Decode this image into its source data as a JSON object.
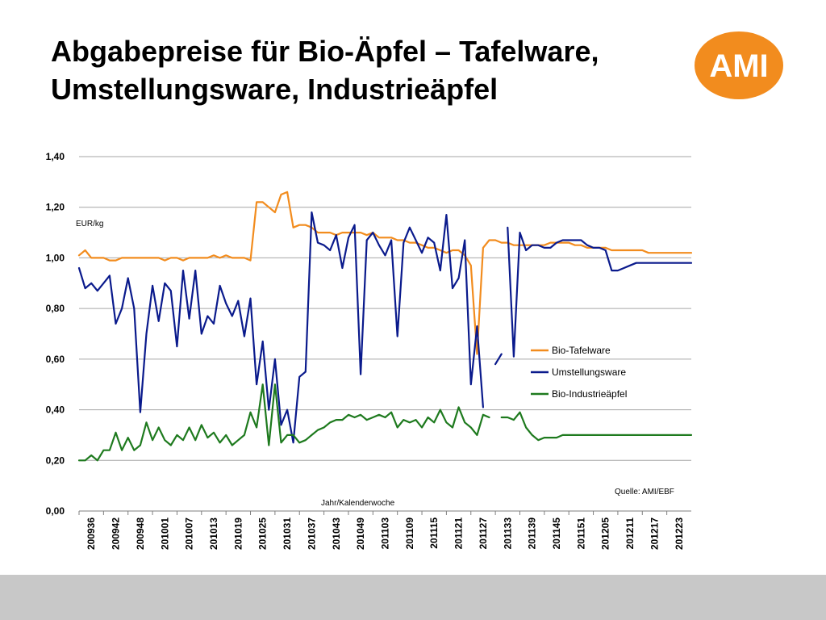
{
  "title_lines": [
    "Abgabepreise für Bio-Äpfel – Tafelware,",
    "Umstellungsware, Industrieäpfel"
  ],
  "logo_text": "AMI",
  "colors": {
    "logo": "#f28c1e",
    "bio_tafelware": "#f28c1e",
    "umstellungsware": "#0a1a8c",
    "bio_industrieaepfel": "#1e7a1e",
    "grid": "#a6a6a6",
    "footer": "#c8c8c8"
  },
  "chart_data": {
    "type": "line",
    "ylabel": "EUR/kg",
    "xlabel": "Jahr/Kalenderwoche",
    "source": "Quelle: AMI/EBF",
    "ylim": [
      0,
      1.4
    ],
    "yticks": [
      "0,00",
      "0,20",
      "0,40",
      "0,60",
      "0,80",
      "1,00",
      "1,20",
      "1,40"
    ],
    "xticks": [
      "200936",
      "200942",
      "200948",
      "201001",
      "201007",
      "201013",
      "201019",
      "201025",
      "201031",
      "201037",
      "201043",
      "201049",
      "201103",
      "201109",
      "201115",
      "201121",
      "201127",
      "201133",
      "201139",
      "201145",
      "201151",
      "201205",
      "201211",
      "201217",
      "201223"
    ],
    "grid": true,
    "legend_position": "right",
    "series": [
      {
        "name": "Bio-Tafelware",
        "color": "#f28c1e",
        "points": [
          [
            0,
            1.01
          ],
          [
            1,
            1.03
          ],
          [
            2,
            1.0
          ],
          [
            3,
            1.0
          ],
          [
            4,
            1.0
          ],
          [
            5,
            0.99
          ],
          [
            6,
            0.99
          ],
          [
            7,
            1.0
          ],
          [
            8,
            1.0
          ],
          [
            9,
            1.0
          ],
          [
            10,
            1.0
          ],
          [
            11,
            1.0
          ],
          [
            12,
            1.0
          ],
          [
            13,
            1.0
          ],
          [
            14,
            0.99
          ],
          [
            15,
            1.0
          ],
          [
            16,
            1.0
          ],
          [
            17,
            0.99
          ],
          [
            18,
            1.0
          ],
          [
            19,
            1.0
          ],
          [
            20,
            1.0
          ],
          [
            21,
            1.0
          ],
          [
            22,
            1.01
          ],
          [
            23,
            1.0
          ],
          [
            24,
            1.01
          ],
          [
            25,
            1.0
          ],
          [
            26,
            1.0
          ],
          [
            27,
            1.0
          ],
          [
            28,
            0.99
          ],
          [
            29,
            1.22
          ],
          [
            30,
            1.22
          ],
          [
            31,
            1.2
          ],
          [
            32,
            1.18
          ],
          [
            33,
            1.25
          ],
          [
            34,
            1.26
          ],
          [
            35,
            1.12
          ],
          [
            36,
            1.13
          ],
          [
            37,
            1.13
          ],
          [
            38,
            1.12
          ],
          [
            39,
            1.1
          ],
          [
            40,
            1.1
          ],
          [
            41,
            1.1
          ],
          [
            42,
            1.09
          ],
          [
            43,
            1.1
          ],
          [
            44,
            1.1
          ],
          [
            45,
            1.1
          ],
          [
            46,
            1.1
          ],
          [
            47,
            1.09
          ],
          [
            48,
            1.1
          ],
          [
            49,
            1.08
          ],
          [
            50,
            1.08
          ],
          [
            51,
            1.08
          ],
          [
            52,
            1.07
          ],
          [
            53,
            1.07
          ],
          [
            54,
            1.06
          ],
          [
            55,
            1.06
          ],
          [
            56,
            1.05
          ],
          [
            57,
            1.04
          ],
          [
            58,
            1.04
          ],
          [
            59,
            1.03
          ],
          [
            60,
            1.02
          ],
          [
            61,
            1.03
          ],
          [
            62,
            1.03
          ],
          [
            63,
            1.01
          ],
          [
            64,
            0.97
          ],
          [
            65,
            0.62
          ],
          [
            66,
            1.04
          ],
          [
            67,
            1.07
          ],
          [
            68,
            1.07
          ],
          [
            69,
            1.06
          ],
          [
            70,
            1.06
          ],
          [
            71,
            1.05
          ],
          [
            72,
            1.05
          ],
          [
            73,
            1.05
          ],
          [
            74,
            1.05
          ],
          [
            75,
            1.05
          ],
          [
            76,
            1.05
          ],
          [
            77,
            1.06
          ],
          [
            78,
            1.06
          ],
          [
            79,
            1.06
          ],
          [
            80,
            1.06
          ],
          [
            81,
            1.05
          ],
          [
            82,
            1.05
          ],
          [
            83,
            1.04
          ],
          [
            84,
            1.04
          ],
          [
            85,
            1.04
          ],
          [
            86,
            1.04
          ],
          [
            87,
            1.03
          ],
          [
            88,
            1.03
          ],
          [
            89,
            1.03
          ],
          [
            90,
            1.03
          ],
          [
            91,
            1.03
          ],
          [
            92,
            1.03
          ],
          [
            93,
            1.02
          ],
          [
            94,
            1.02
          ],
          [
            95,
            1.02
          ],
          [
            96,
            1.02
          ],
          [
            97,
            1.02
          ],
          [
            98,
            1.02
          ],
          [
            99,
            1.02
          ],
          [
            100,
            1.02
          ]
        ]
      },
      {
        "name": "Umstellungsware",
        "color": "#0a1a8c",
        "points": [
          [
            0,
            0.96
          ],
          [
            1,
            0.88
          ],
          [
            2,
            0.9
          ],
          [
            3,
            0.87
          ],
          [
            4,
            0.9
          ],
          [
            5,
            0.93
          ],
          [
            6,
            0.74
          ],
          [
            7,
            0.8
          ],
          [
            8,
            0.92
          ],
          [
            9,
            0.8
          ],
          [
            10,
            0.39
          ],
          [
            11,
            0.7
          ],
          [
            12,
            0.89
          ],
          [
            13,
            0.75
          ],
          [
            14,
            0.9
          ],
          [
            15,
            0.87
          ],
          [
            16,
            0.65
          ],
          [
            17,
            0.95
          ],
          [
            18,
            0.76
          ],
          [
            19,
            0.95
          ],
          [
            20,
            0.7
          ],
          [
            21,
            0.77
          ],
          [
            22,
            0.74
          ],
          [
            23,
            0.89
          ],
          [
            24,
            0.82
          ],
          [
            25,
            0.77
          ],
          [
            26,
            0.83
          ],
          [
            27,
            0.69
          ],
          [
            28,
            0.84
          ],
          [
            29,
            0.5
          ],
          [
            30,
            0.67
          ],
          [
            31,
            0.4
          ],
          [
            32,
            0.6
          ],
          [
            33,
            0.34
          ],
          [
            34,
            0.4
          ],
          [
            35,
            0.27
          ],
          [
            36,
            0.53
          ],
          [
            37,
            0.55
          ],
          [
            38,
            1.18
          ],
          [
            39,
            1.06
          ],
          [
            40,
            1.05
          ],
          [
            41,
            1.03
          ],
          [
            42,
            1.09
          ],
          [
            43,
            0.96
          ],
          [
            44,
            1.08
          ],
          [
            45,
            1.13
          ],
          [
            46,
            0.54
          ],
          [
            47,
            1.07
          ],
          [
            48,
            1.1
          ],
          [
            49,
            1.05
          ],
          [
            50,
            1.01
          ],
          [
            51,
            1.07
          ],
          [
            52,
            0.69
          ],
          [
            53,
            1.06
          ],
          [
            54,
            1.12
          ],
          [
            55,
            1.07
          ],
          [
            56,
            1.02
          ],
          [
            57,
            1.08
          ],
          [
            58,
            1.06
          ],
          [
            59,
            0.95
          ],
          [
            60,
            1.17
          ],
          [
            61,
            0.88
          ],
          [
            62,
            0.92
          ],
          [
            63,
            1.07
          ],
          [
            64,
            0.5
          ],
          [
            65,
            0.73
          ],
          [
            66,
            0.41
          ],
          null,
          [
            68,
            0.58
          ],
          [
            69,
            0.62
          ],
          null,
          [
            70,
            1.12
          ],
          [
            71,
            0.61
          ],
          [
            72,
            1.1
          ],
          [
            73,
            1.03
          ],
          [
            74,
            1.05
          ],
          [
            75,
            1.05
          ],
          [
            76,
            1.04
          ],
          [
            77,
            1.04
          ],
          [
            78,
            1.06
          ],
          [
            79,
            1.07
          ],
          [
            80,
            1.07
          ],
          [
            81,
            1.07
          ],
          [
            82,
            1.07
          ],
          [
            83,
            1.05
          ],
          [
            84,
            1.04
          ],
          [
            85,
            1.04
          ],
          [
            86,
            1.03
          ],
          [
            87,
            0.95
          ],
          [
            88,
            0.95
          ],
          [
            89,
            0.96
          ],
          [
            90,
            0.97
          ],
          [
            91,
            0.98
          ],
          [
            92,
            0.98
          ],
          [
            93,
            0.98
          ],
          [
            94,
            0.98
          ],
          [
            95,
            0.98
          ],
          [
            96,
            0.98
          ],
          [
            97,
            0.98
          ],
          [
            98,
            0.98
          ],
          [
            99,
            0.98
          ],
          [
            100,
            0.98
          ]
        ]
      },
      {
        "name": "Bio-Industrieäpfel",
        "color": "#1e7a1e",
        "points": [
          [
            0,
            0.2
          ],
          [
            1,
            0.2
          ],
          [
            2,
            0.22
          ],
          [
            3,
            0.2
          ],
          [
            4,
            0.24
          ],
          [
            5,
            0.24
          ],
          [
            6,
            0.31
          ],
          [
            7,
            0.24
          ],
          [
            8,
            0.29
          ],
          [
            9,
            0.24
          ],
          [
            10,
            0.26
          ],
          [
            11,
            0.35
          ],
          [
            12,
            0.28
          ],
          [
            13,
            0.33
          ],
          [
            14,
            0.28
          ],
          [
            15,
            0.26
          ],
          [
            16,
            0.3
          ],
          [
            17,
            0.28
          ],
          [
            18,
            0.33
          ],
          [
            19,
            0.28
          ],
          [
            20,
            0.34
          ],
          [
            21,
            0.29
          ],
          [
            22,
            0.31
          ],
          [
            23,
            0.27
          ],
          [
            24,
            0.3
          ],
          [
            25,
            0.26
          ],
          [
            26,
            0.28
          ],
          [
            27,
            0.3
          ],
          [
            28,
            0.39
          ],
          [
            29,
            0.33
          ],
          [
            30,
            0.5
          ],
          [
            31,
            0.26
          ],
          [
            32,
            0.5
          ],
          [
            33,
            0.27
          ],
          [
            34,
            0.3
          ],
          [
            35,
            0.3
          ],
          [
            36,
            0.27
          ],
          [
            37,
            0.28
          ],
          [
            38,
            0.3
          ],
          [
            39,
            0.32
          ],
          [
            40,
            0.33
          ],
          [
            41,
            0.35
          ],
          [
            42,
            0.36
          ],
          [
            43,
            0.36
          ],
          [
            44,
            0.38
          ],
          [
            45,
            0.37
          ],
          [
            46,
            0.38
          ],
          [
            47,
            0.36
          ],
          [
            48,
            0.37
          ],
          [
            49,
            0.38
          ],
          [
            50,
            0.37
          ],
          [
            51,
            0.39
          ],
          [
            52,
            0.33
          ],
          [
            53,
            0.36
          ],
          [
            54,
            0.35
          ],
          [
            55,
            0.36
          ],
          [
            56,
            0.33
          ],
          [
            57,
            0.37
          ],
          [
            58,
            0.35
          ],
          [
            59,
            0.4
          ],
          [
            60,
            0.35
          ],
          [
            61,
            0.33
          ],
          [
            62,
            0.41
          ],
          [
            63,
            0.35
          ],
          [
            64,
            0.33
          ],
          [
            65,
            0.3
          ],
          [
            66,
            0.38
          ],
          [
            67,
            0.37
          ],
          null,
          [
            69,
            0.37
          ],
          [
            70,
            0.37
          ],
          [
            71,
            0.36
          ],
          [
            72,
            0.39
          ],
          [
            73,
            0.33
          ],
          [
            74,
            0.3
          ],
          [
            75,
            0.28
          ],
          [
            76,
            0.29
          ],
          [
            77,
            0.29
          ],
          [
            78,
            0.29
          ],
          [
            79,
            0.3
          ],
          [
            80,
            0.3
          ],
          [
            81,
            0.3
          ],
          [
            82,
            0.3
          ],
          [
            83,
            0.3
          ],
          [
            84,
            0.3
          ],
          [
            85,
            0.3
          ],
          [
            86,
            0.3
          ],
          [
            87,
            0.3
          ],
          [
            88,
            0.3
          ],
          [
            89,
            0.3
          ],
          [
            90,
            0.3
          ],
          [
            91,
            0.3
          ],
          [
            92,
            0.3
          ],
          [
            93,
            0.3
          ],
          [
            94,
            0.3
          ],
          [
            95,
            0.3
          ],
          [
            96,
            0.3
          ],
          [
            97,
            0.3
          ],
          [
            98,
            0.3
          ],
          [
            99,
            0.3
          ],
          [
            100,
            0.3
          ]
        ]
      }
    ]
  }
}
